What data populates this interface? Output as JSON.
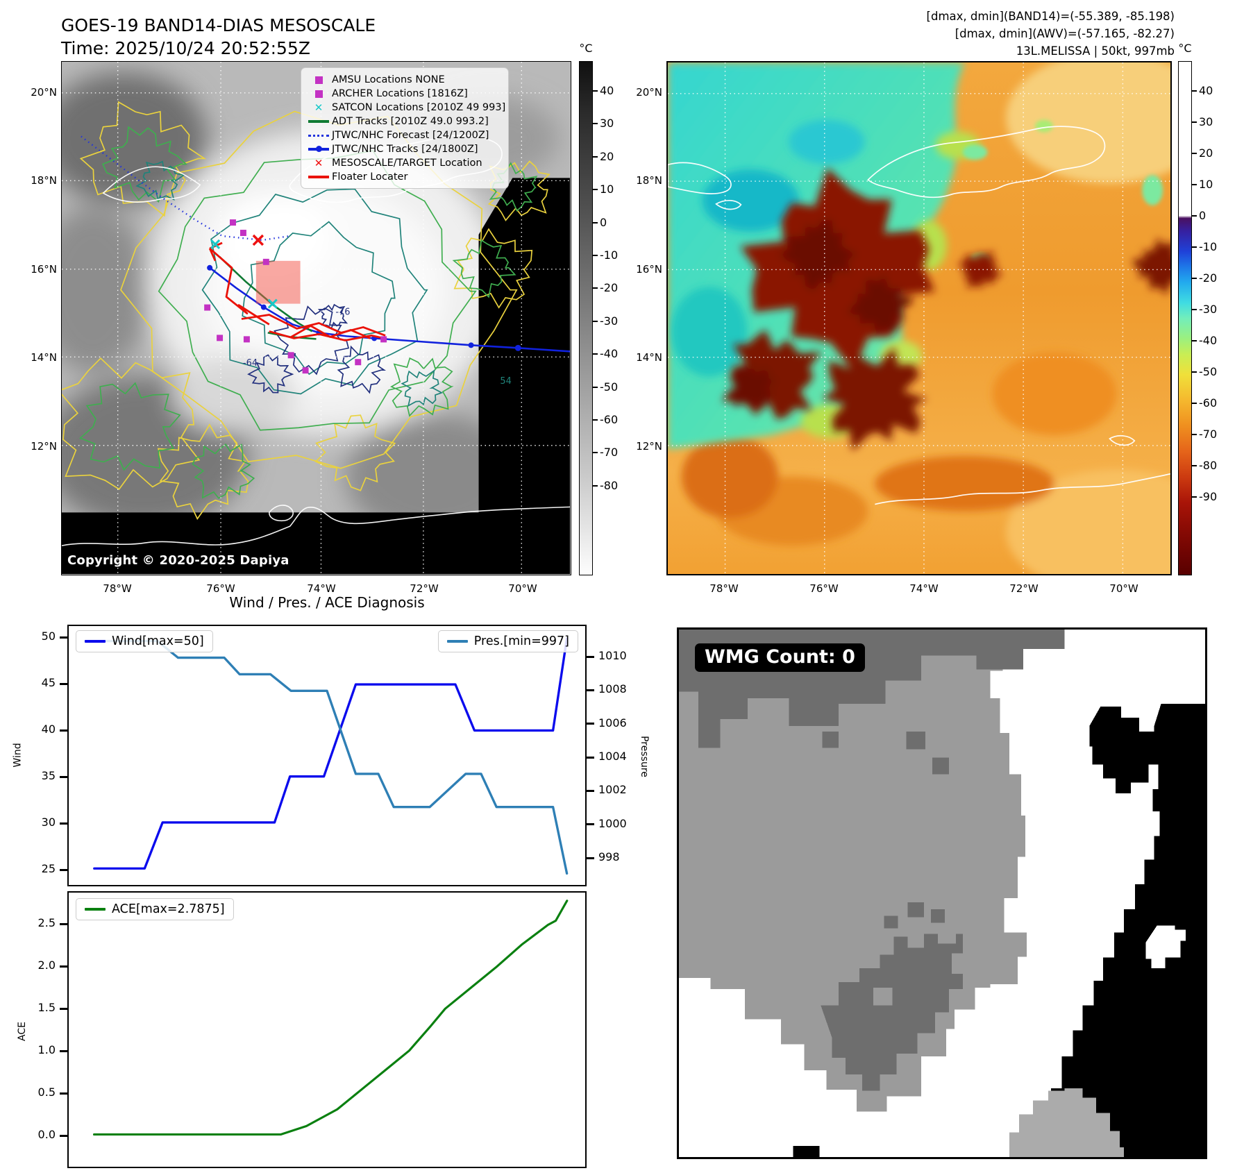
{
  "header": {
    "title_line1": "GOES-19 BAND14-DIAS MESOSCALE",
    "title_line2": "Time: 2025/10/24 20:52:55Z",
    "info_line1": "[dmax, dmin](BAND14)=(-55.389, -85.198)",
    "info_line2": "[dmax, dmin](AWV)=(-57.165, -82.27)",
    "info_line3": "13L.MELISSA | 50kt, 997mb"
  },
  "maps": {
    "lat_ticks": [
      "20°N",
      "18°N",
      "16°N",
      "14°N",
      "12°N"
    ],
    "lon_ticks": [
      "78°W",
      "76°W",
      "74°W",
      "72°W",
      "70°W"
    ],
    "left": {
      "copyright": "Copyright © 2020-2025 Dapiya",
      "colorbar": {
        "unit": "°C",
        "ticks": [
          40,
          30,
          20,
          10,
          0,
          -10,
          -20,
          -30,
          -40,
          -50,
          -60,
          -70,
          -80
        ]
      },
      "legend": [
        {
          "label": "AMSU Locations NONE",
          "marker": "square",
          "color": "#c332c3"
        },
        {
          "label": "ARCHER Locations [1816Z]",
          "marker": "square",
          "color": "#c332c3"
        },
        {
          "label": "SATCON Locations [2010Z 49 993]",
          "marker": "x",
          "color": "#18c8c8"
        },
        {
          "label": "ADT Tracks [2010Z 49.0 993.2]",
          "marker": "line",
          "color": "#0f7a33"
        },
        {
          "label": "JTWC/NHC Forecast [24/1200Z]",
          "marker": "dotted",
          "color": "#2233dd"
        },
        {
          "label": "JTWC/NHC Tracks [24/1800Z]",
          "marker": "line-dot",
          "color": "#1122dd"
        },
        {
          "label": "MESOSCALE/TARGET Location",
          "marker": "x",
          "color": "#ee1111"
        },
        {
          "label": "Floater Locater",
          "marker": "line",
          "color": "#ea1208"
        }
      ],
      "contour_labels": [
        "-64",
        "-76",
        "54"
      ]
    },
    "right": {
      "colorbar": {
        "unit": "°C",
        "ticks": [
          40,
          30,
          20,
          10,
          0,
          -10,
          -20,
          -30,
          -40,
          -50,
          -60,
          -70,
          -80,
          -90
        ]
      }
    }
  },
  "diagnosis_title": "Wind / Pres. / ACE Diagnosis",
  "wmg": {
    "label": "WMG Count: 0"
  },
  "chart_data": [
    {
      "type": "line",
      "name": "Wind",
      "legend": "Wind[max=50]",
      "color": "#0b0bed",
      "ylabel": "Wind",
      "yticks": [
        50,
        45,
        40,
        35,
        30,
        25
      ],
      "ylim": [
        23.7,
        51.3
      ],
      "legend_position": "upper-left",
      "grid": false,
      "points": [
        [
          0.047,
          25
        ],
        [
          0.145,
          25
        ],
        [
          0.18,
          30
        ],
        [
          0.398,
          30
        ],
        [
          0.428,
          35
        ],
        [
          0.494,
          35
        ],
        [
          0.556,
          45
        ],
        [
          0.75,
          45
        ],
        [
          0.787,
          40
        ],
        [
          0.94,
          40
        ],
        [
          0.967,
          50
        ]
      ]
    },
    {
      "type": "line",
      "name": "Pressure",
      "legend": "Pres.[min=997]",
      "color": "#2e7fb5",
      "ylabel": "Pressure",
      "yticks": [
        1010,
        1008,
        1006,
        1004,
        1002,
        1000,
        998
      ],
      "ylim": [
        996.3,
        1011.8
      ],
      "legend_position": "upper-right",
      "grid": false,
      "points": [
        [
          0.03,
          1011
        ],
        [
          0.17,
          1011
        ],
        [
          0.21,
          1010
        ],
        [
          0.3,
          1010
        ],
        [
          0.33,
          1009
        ],
        [
          0.39,
          1009
        ],
        [
          0.43,
          1008
        ],
        [
          0.5,
          1008
        ],
        [
          0.556,
          1003
        ],
        [
          0.6,
          1003
        ],
        [
          0.63,
          1001
        ],
        [
          0.7,
          1001
        ],
        [
          0.77,
          1003
        ],
        [
          0.8,
          1003
        ],
        [
          0.83,
          1001
        ],
        [
          0.94,
          1001
        ],
        [
          0.967,
          997
        ]
      ]
    },
    {
      "type": "line",
      "name": "ACE",
      "legend": "ACE[max=2.7875]",
      "color": "#0a8010",
      "ylabel": "ACE",
      "yticks": [
        2.5,
        2.0,
        1.5,
        1.0,
        0.5,
        0.0
      ],
      "ylim": [
        -0.18,
        2.93
      ],
      "legend_position": "upper-left",
      "grid": false,
      "points": [
        [
          0.047,
          0
        ],
        [
          0.41,
          0
        ],
        [
          0.46,
          0.1
        ],
        [
          0.52,
          0.3
        ],
        [
          0.57,
          0.55
        ],
        [
          0.62,
          0.8
        ],
        [
          0.66,
          1.0
        ],
        [
          0.7,
          1.28
        ],
        [
          0.73,
          1.5
        ],
        [
          0.78,
          1.75
        ],
        [
          0.83,
          2.0
        ],
        [
          0.88,
          2.27
        ],
        [
          0.93,
          2.5
        ],
        [
          0.945,
          2.55
        ],
        [
          0.967,
          2.7875
        ]
      ]
    }
  ]
}
